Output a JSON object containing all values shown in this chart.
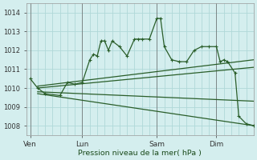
{
  "bg_color": "#d4eeee",
  "grid_color": "#b0d8d8",
  "line_color": "#2a5e2a",
  "ylim": [
    1007.5,
    1014.5
  ],
  "yticks": [
    1008,
    1009,
    1010,
    1011,
    1012,
    1013,
    1014
  ],
  "xlabel": "Pression niveau de la mer( hPa )",
  "xtick_labels": [
    "Ven",
    "Lun",
    "Sam",
    "Dim"
  ],
  "xtick_positions": [
    0,
    7,
    17,
    25
  ],
  "vline_positions": [
    0,
    7,
    17,
    25
  ],
  "xlim": [
    -0.5,
    30
  ],
  "main_line": [
    [
      0,
      1010.5
    ],
    [
      1,
      1010.0
    ],
    [
      2,
      1009.7
    ],
    [
      4,
      1009.6
    ],
    [
      5,
      1010.3
    ],
    [
      6,
      1010.2
    ],
    [
      7,
      1010.3
    ],
    [
      8,
      1011.5
    ],
    [
      8.5,
      1011.8
    ],
    [
      9,
      1011.7
    ],
    [
      9.5,
      1012.5
    ],
    [
      10,
      1012.5
    ],
    [
      10.5,
      1012.0
    ],
    [
      11,
      1012.5
    ],
    [
      12,
      1012.2
    ],
    [
      13,
      1011.7
    ],
    [
      14,
      1012.6
    ],
    [
      14.5,
      1012.6
    ],
    [
      15,
      1012.6
    ],
    [
      16,
      1012.6
    ],
    [
      17,
      1013.7
    ],
    [
      17.5,
      1013.7
    ],
    [
      18,
      1012.2
    ],
    [
      19,
      1011.5
    ],
    [
      20,
      1011.4
    ],
    [
      21,
      1011.4
    ],
    [
      22,
      1012.0
    ],
    [
      23,
      1012.2
    ],
    [
      24,
      1012.2
    ],
    [
      25,
      1012.2
    ],
    [
      25.5,
      1011.4
    ],
    [
      26,
      1011.5
    ],
    [
      26.5,
      1011.4
    ],
    [
      27.5,
      1010.8
    ],
    [
      28,
      1008.5
    ],
    [
      29,
      1008.1
    ],
    [
      30,
      1008.0
    ]
  ],
  "trend_line1": [
    [
      1,
      1010.1
    ],
    [
      30,
      1011.5
    ]
  ],
  "trend_line2": [
    [
      1,
      1010.0
    ],
    [
      30,
      1011.1
    ]
  ],
  "trend_line3": [
    [
      1,
      1009.8
    ],
    [
      30,
      1009.3
    ]
  ],
  "trend_line4": [
    [
      1,
      1009.7
    ],
    [
      30,
      1008.0
    ]
  ]
}
